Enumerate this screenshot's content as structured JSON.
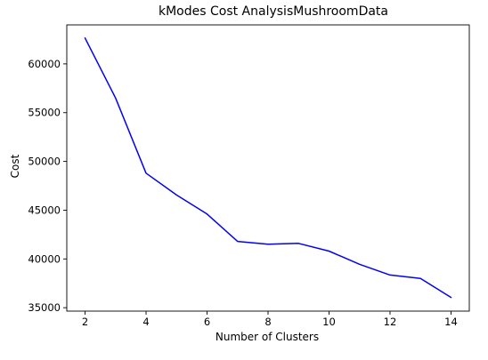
{
  "chart_data": {
    "type": "line",
    "title": "kModes Cost AnalysisMushroomData",
    "xlabel": "Number of Clusters",
    "ylabel": "Cost",
    "xlim": [
      1.4,
      14.6
    ],
    "ylim": [
      34650,
      64000
    ],
    "xticks": [
      2,
      4,
      6,
      8,
      10,
      12,
      14
    ],
    "yticks": [
      35000,
      40000,
      45000,
      50000,
      55000,
      60000
    ],
    "grid": false,
    "series": [
      {
        "color": "#0000ff",
        "x": [
          2,
          3,
          4,
          5,
          6,
          7,
          8,
          9,
          10,
          11,
          12,
          13,
          14
        ],
        "y": [
          62650,
          56500,
          48800,
          46550,
          44600,
          41800,
          41500,
          41600,
          40800,
          39450,
          38350,
          38000,
          36050
        ]
      }
    ]
  }
}
